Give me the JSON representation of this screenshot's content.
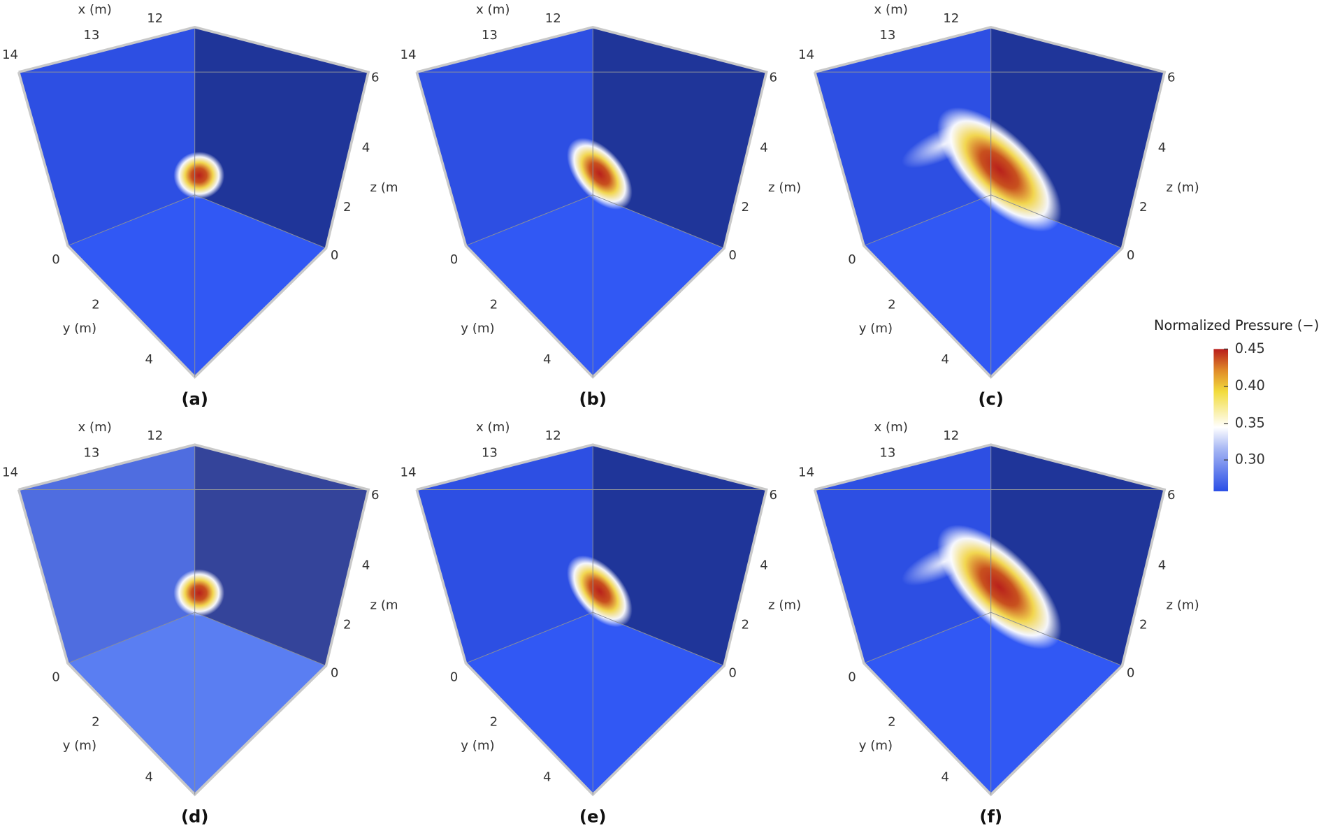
{
  "panels": [
    {
      "label": "(a)",
      "x_label": "x (m)",
      "y_label": "y (m)",
      "z_label": "z (m",
      "x_ticks": [
        "12",
        "13",
        "14"
      ],
      "y_ticks": [
        "0",
        "2",
        "4"
      ],
      "z_ticks": [
        "0",
        "2",
        "4",
        "6"
      ]
    },
    {
      "label": "(b)",
      "x_label": "x (m)",
      "y_label": "y (m)",
      "z_label": "z (m)",
      "x_ticks": [
        "12",
        "13",
        "14"
      ],
      "y_ticks": [
        "0",
        "2",
        "4"
      ],
      "z_ticks": [
        "0",
        "2",
        "4",
        "6"
      ]
    },
    {
      "label": "(c)",
      "x_label": "x (m)",
      "y_label": "y (m)",
      "z_label": "z (m)",
      "x_ticks": [
        "12",
        "13",
        "14"
      ],
      "y_ticks": [
        "0",
        "2",
        "4"
      ],
      "z_ticks": [
        "0",
        "2",
        "4",
        "6"
      ]
    },
    {
      "label": "(d)",
      "x_label": "x (m)",
      "y_label": "y (m)",
      "z_label": "z (m",
      "x_ticks": [
        "12",
        "13",
        "14"
      ],
      "y_ticks": [
        "0",
        "2",
        "4"
      ],
      "z_ticks": [
        "0",
        "2",
        "4",
        "6"
      ]
    },
    {
      "label": "(e)",
      "x_label": "x (m)",
      "y_label": "y (m)",
      "z_label": "z (m)",
      "x_ticks": [
        "12",
        "13",
        "14"
      ],
      "y_ticks": [
        "0",
        "2",
        "4"
      ],
      "z_ticks": [
        "0",
        "2",
        "4",
        "6"
      ]
    },
    {
      "label": "(f)",
      "x_label": "x (m)",
      "y_label": "y (m)",
      "z_label": "z (m)",
      "x_ticks": [
        "12",
        "13",
        "14"
      ],
      "y_ticks": [
        "0",
        "2",
        "4"
      ],
      "z_ticks": [
        "0",
        "2",
        "4",
        "6"
      ]
    }
  ],
  "colorbar": {
    "title": "Normalized Pressure (−)",
    "ticks": [
      "0.45",
      "0.40",
      "0.35",
      "0.30"
    ]
  }
}
